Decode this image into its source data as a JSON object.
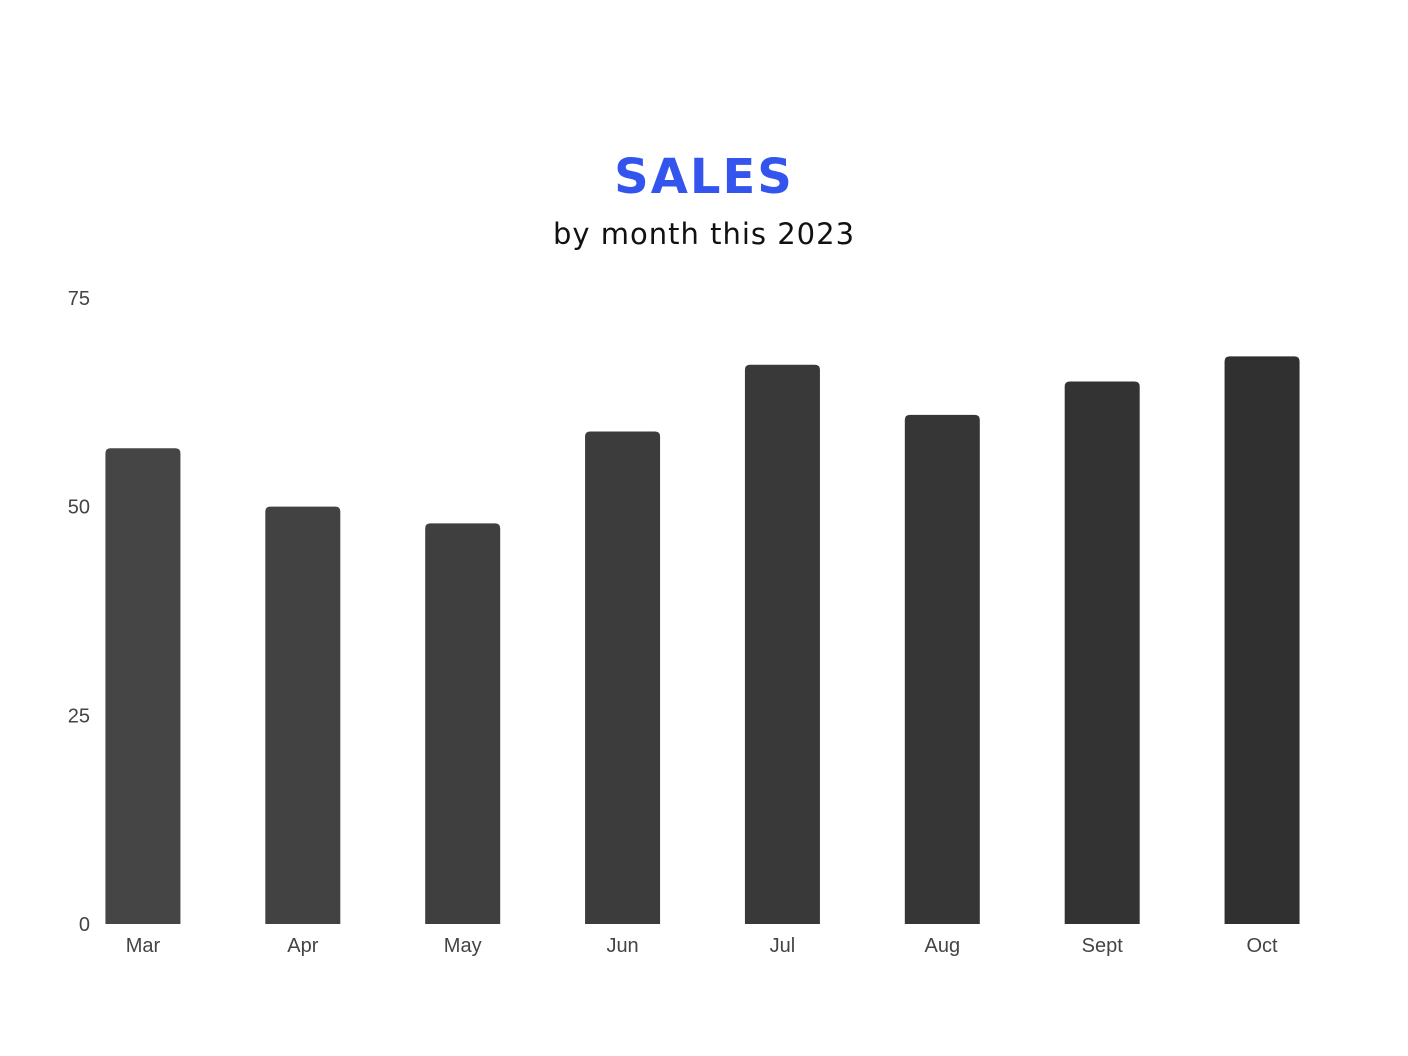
{
  "chart_data": {
    "type": "bar",
    "title": "SALES",
    "subtitle": "by month this 2023",
    "xlabel": "",
    "ylabel": "",
    "categories": [
      "Mar",
      "Apr",
      "May",
      "Jun",
      "Jul",
      "Aug",
      "Sept",
      "Oct"
    ],
    "values": [
      57,
      50,
      48,
      59,
      67,
      61,
      65,
      68
    ],
    "ylim": [
      0,
      75
    ],
    "yticks": [
      "0",
      "25",
      "50",
      "75"
    ],
    "grid": false,
    "legend": "none"
  },
  "colors": {
    "title": "#3355ee",
    "bars": [
      "#454545",
      "#424242",
      "#3f3f3f",
      "#3c3c3c",
      "#393939",
      "#363636",
      "#333333",
      "#303030"
    ]
  }
}
